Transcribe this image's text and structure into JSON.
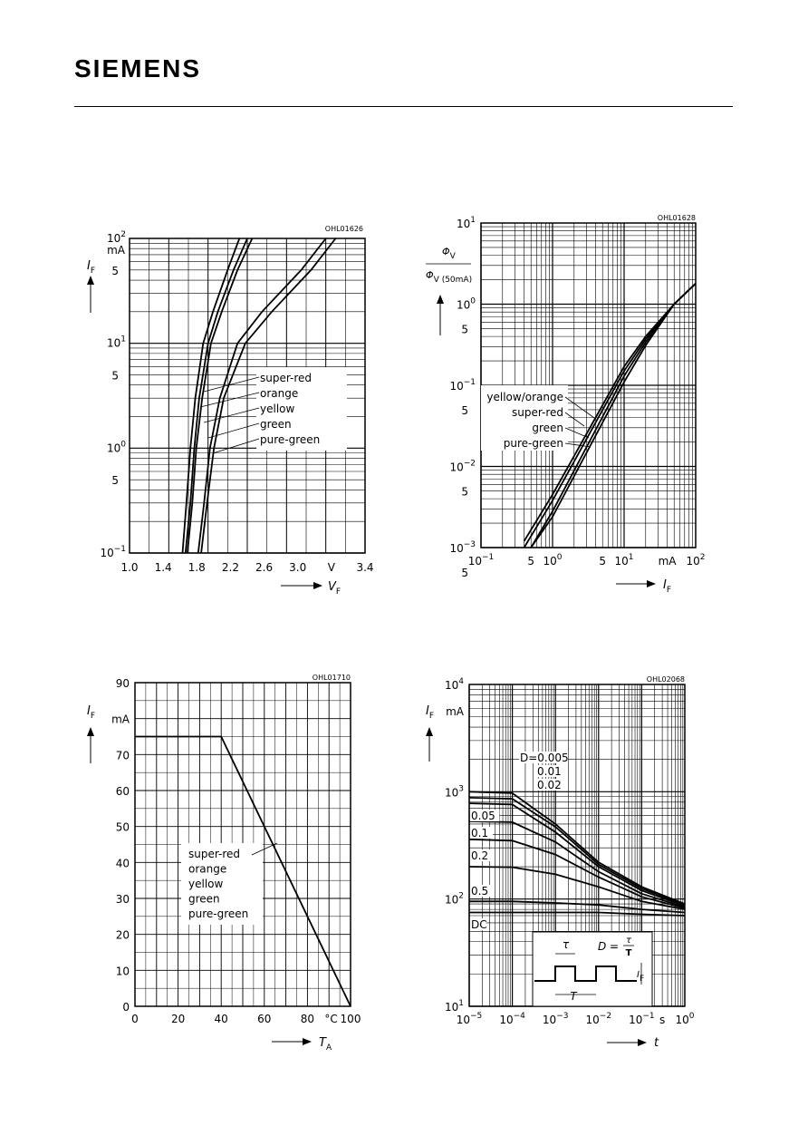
{
  "header": {
    "logo": "SIEMENS"
  },
  "chart_data": [
    {
      "type": "line",
      "code": "OHL01626",
      "xlabel": "V_F",
      "ylabel": "I_F",
      "yunit": "mA",
      "xunit": "V",
      "xlim": [
        1.0,
        3.4
      ],
      "ylim": [
        0.1,
        100
      ],
      "yscale": "log",
      "xtick_labels": [
        "1.0",
        "1.4",
        "1.8",
        "2.2",
        "2.6",
        "3.0",
        "V",
        "3.4"
      ],
      "legend": [
        "super-red",
        "orange",
        "yellow",
        "green",
        "pure-green"
      ],
      "series": [
        {
          "name": "super-red",
          "x": [
            1.54,
            1.58,
            1.62,
            1.67,
            1.75,
            1.85,
            2.0,
            2.12
          ],
          "y": [
            0.1,
            0.3,
            1,
            3,
            10,
            20,
            50,
            100
          ]
        },
        {
          "name": "orange",
          "x": [
            1.57,
            1.62,
            1.66,
            1.71,
            1.8,
            1.9,
            2.06,
            2.2
          ],
          "y": [
            0.1,
            0.3,
            1,
            3,
            10,
            20,
            50,
            100
          ]
        },
        {
          "name": "yellow",
          "x": [
            1.59,
            1.64,
            1.68,
            1.74,
            1.83,
            1.94,
            2.1,
            2.25
          ],
          "y": [
            0.1,
            0.3,
            1,
            3,
            10,
            20,
            50,
            100
          ]
        },
        {
          "name": "green",
          "x": [
            1.7,
            1.76,
            1.82,
            1.92,
            2.1,
            2.35,
            2.75,
            3.0
          ],
          "y": [
            0.1,
            0.3,
            1,
            3,
            10,
            20,
            50,
            100
          ]
        },
        {
          "name": "pure-green",
          "x": [
            1.73,
            1.79,
            1.86,
            1.96,
            2.18,
            2.45,
            2.85,
            3.1
          ],
          "y": [
            0.1,
            0.3,
            1,
            3,
            10,
            20,
            50,
            100
          ]
        }
      ]
    },
    {
      "type": "line",
      "code": "OHL01628",
      "xlabel": "I_F",
      "xunit": "mA",
      "ylabel_num": "Φ_V",
      "ylabel_den": "Φ_V (50mA)",
      "xscale": "log",
      "yscale": "log",
      "xlim": [
        0.1,
        100
      ],
      "ylim": [
        0.001,
        10
      ],
      "legend": [
        "yellow/orange",
        "super-red",
        "green",
        "pure-green"
      ],
      "series": [
        {
          "name": "yellow/orange",
          "x": [
            0.4,
            1,
            10,
            20,
            50,
            100
          ],
          "y": [
            0.0012,
            0.0045,
            0.17,
            0.4,
            1.0,
            1.8
          ]
        },
        {
          "name": "super-red",
          "x": [
            0.4,
            1,
            10,
            20,
            50,
            100
          ],
          "y": [
            0.001,
            0.0038,
            0.15,
            0.37,
            1.0,
            1.8
          ]
        },
        {
          "name": "green",
          "x": [
            0.5,
            1,
            10,
            20,
            50,
            100
          ],
          "y": [
            0.001,
            0.0028,
            0.13,
            0.34,
            1.0,
            1.8
          ]
        },
        {
          "name": "pure-green",
          "x": [
            0.5,
            1,
            10,
            20,
            50,
            100
          ],
          "y": [
            0.001,
            0.0024,
            0.11,
            0.31,
            1.0,
            1.8
          ]
        }
      ]
    },
    {
      "type": "line",
      "code": "OHL01710",
      "xlabel": "T_A",
      "xunit": "°C",
      "ylabel": "I_F",
      "yunit": "mA",
      "xlim": [
        0,
        100
      ],
      "ylim": [
        0,
        90
      ],
      "xtick_labels": [
        "0",
        "20",
        "40",
        "60",
        "80",
        "°C",
        "100"
      ],
      "ytick_labels": [
        "0",
        "10",
        "20",
        "30",
        "40",
        "50",
        "60",
        "70",
        "mA",
        "90"
      ],
      "legend": [
        "super-red",
        "orange",
        "yellow",
        "green",
        "pure-green"
      ],
      "series": [
        {
          "name": "",
          "x": [
            0,
            40,
            100
          ],
          "y": [
            75,
            75,
            0
          ]
        }
      ]
    },
    {
      "type": "line",
      "code": "OHL02068",
      "xlabel": "t",
      "xunit": "s",
      "ylabel": "I_F",
      "yunit": "mA",
      "xscale": "log",
      "yscale": "log",
      "xlim": [
        1e-05,
        1
      ],
      "ylim": [
        10,
        10000
      ],
      "duty_labels": [
        "D=0.005",
        "0.01",
        "0.02",
        "0.05",
        "0.1",
        "0.2",
        "0.5",
        "DC"
      ],
      "inset": {
        "tau": "τ",
        "T": "T",
        "D_formula": "D =",
        "If": "I_F"
      },
      "series": [
        {
          "name": "D=0.005",
          "x": [
            1e-05,
            0.0001,
            0.001,
            0.01,
            0.1,
            1
          ],
          "y": [
            1000,
            970,
            500,
            220,
            130,
            90
          ]
        },
        {
          "name": "0.01",
          "x": [
            1e-05,
            0.0001,
            0.001,
            0.01,
            0.1,
            1
          ],
          "y": [
            880,
            860,
            470,
            210,
            125,
            88
          ]
        },
        {
          "name": "0.02",
          "x": [
            1e-05,
            0.0001,
            0.001,
            0.01,
            0.1,
            1
          ],
          "y": [
            780,
            760,
            420,
            200,
            120,
            86
          ]
        },
        {
          "name": "0.05",
          "x": [
            1e-05,
            0.0001,
            0.001,
            0.01,
            0.1,
            1
          ],
          "y": [
            530,
            520,
            340,
            180,
            112,
            84
          ]
        },
        {
          "name": "0.1",
          "x": [
            1e-05,
            0.0001,
            0.001,
            0.01,
            0.1,
            1
          ],
          "y": [
            360,
            350,
            260,
            160,
            105,
            82
          ]
        },
        {
          "name": "0.2",
          "x": [
            1e-05,
            0.0001,
            0.001,
            0.01,
            0.1,
            1
          ],
          "y": [
            200,
            198,
            170,
            130,
            95,
            80
          ]
        },
        {
          "name": "0.5",
          "x": [
            1e-05,
            0.0001,
            0.001,
            0.01,
            0.1,
            1
          ],
          "y": [
            95,
            95,
            92,
            88,
            80,
            75
          ]
        },
        {
          "name": "DC",
          "x": [
            1e-05,
            0.0001,
            0.001,
            0.01,
            0.1,
            1
          ],
          "y": [
            75,
            75,
            75,
            75,
            72,
            70
          ]
        }
      ]
    }
  ]
}
